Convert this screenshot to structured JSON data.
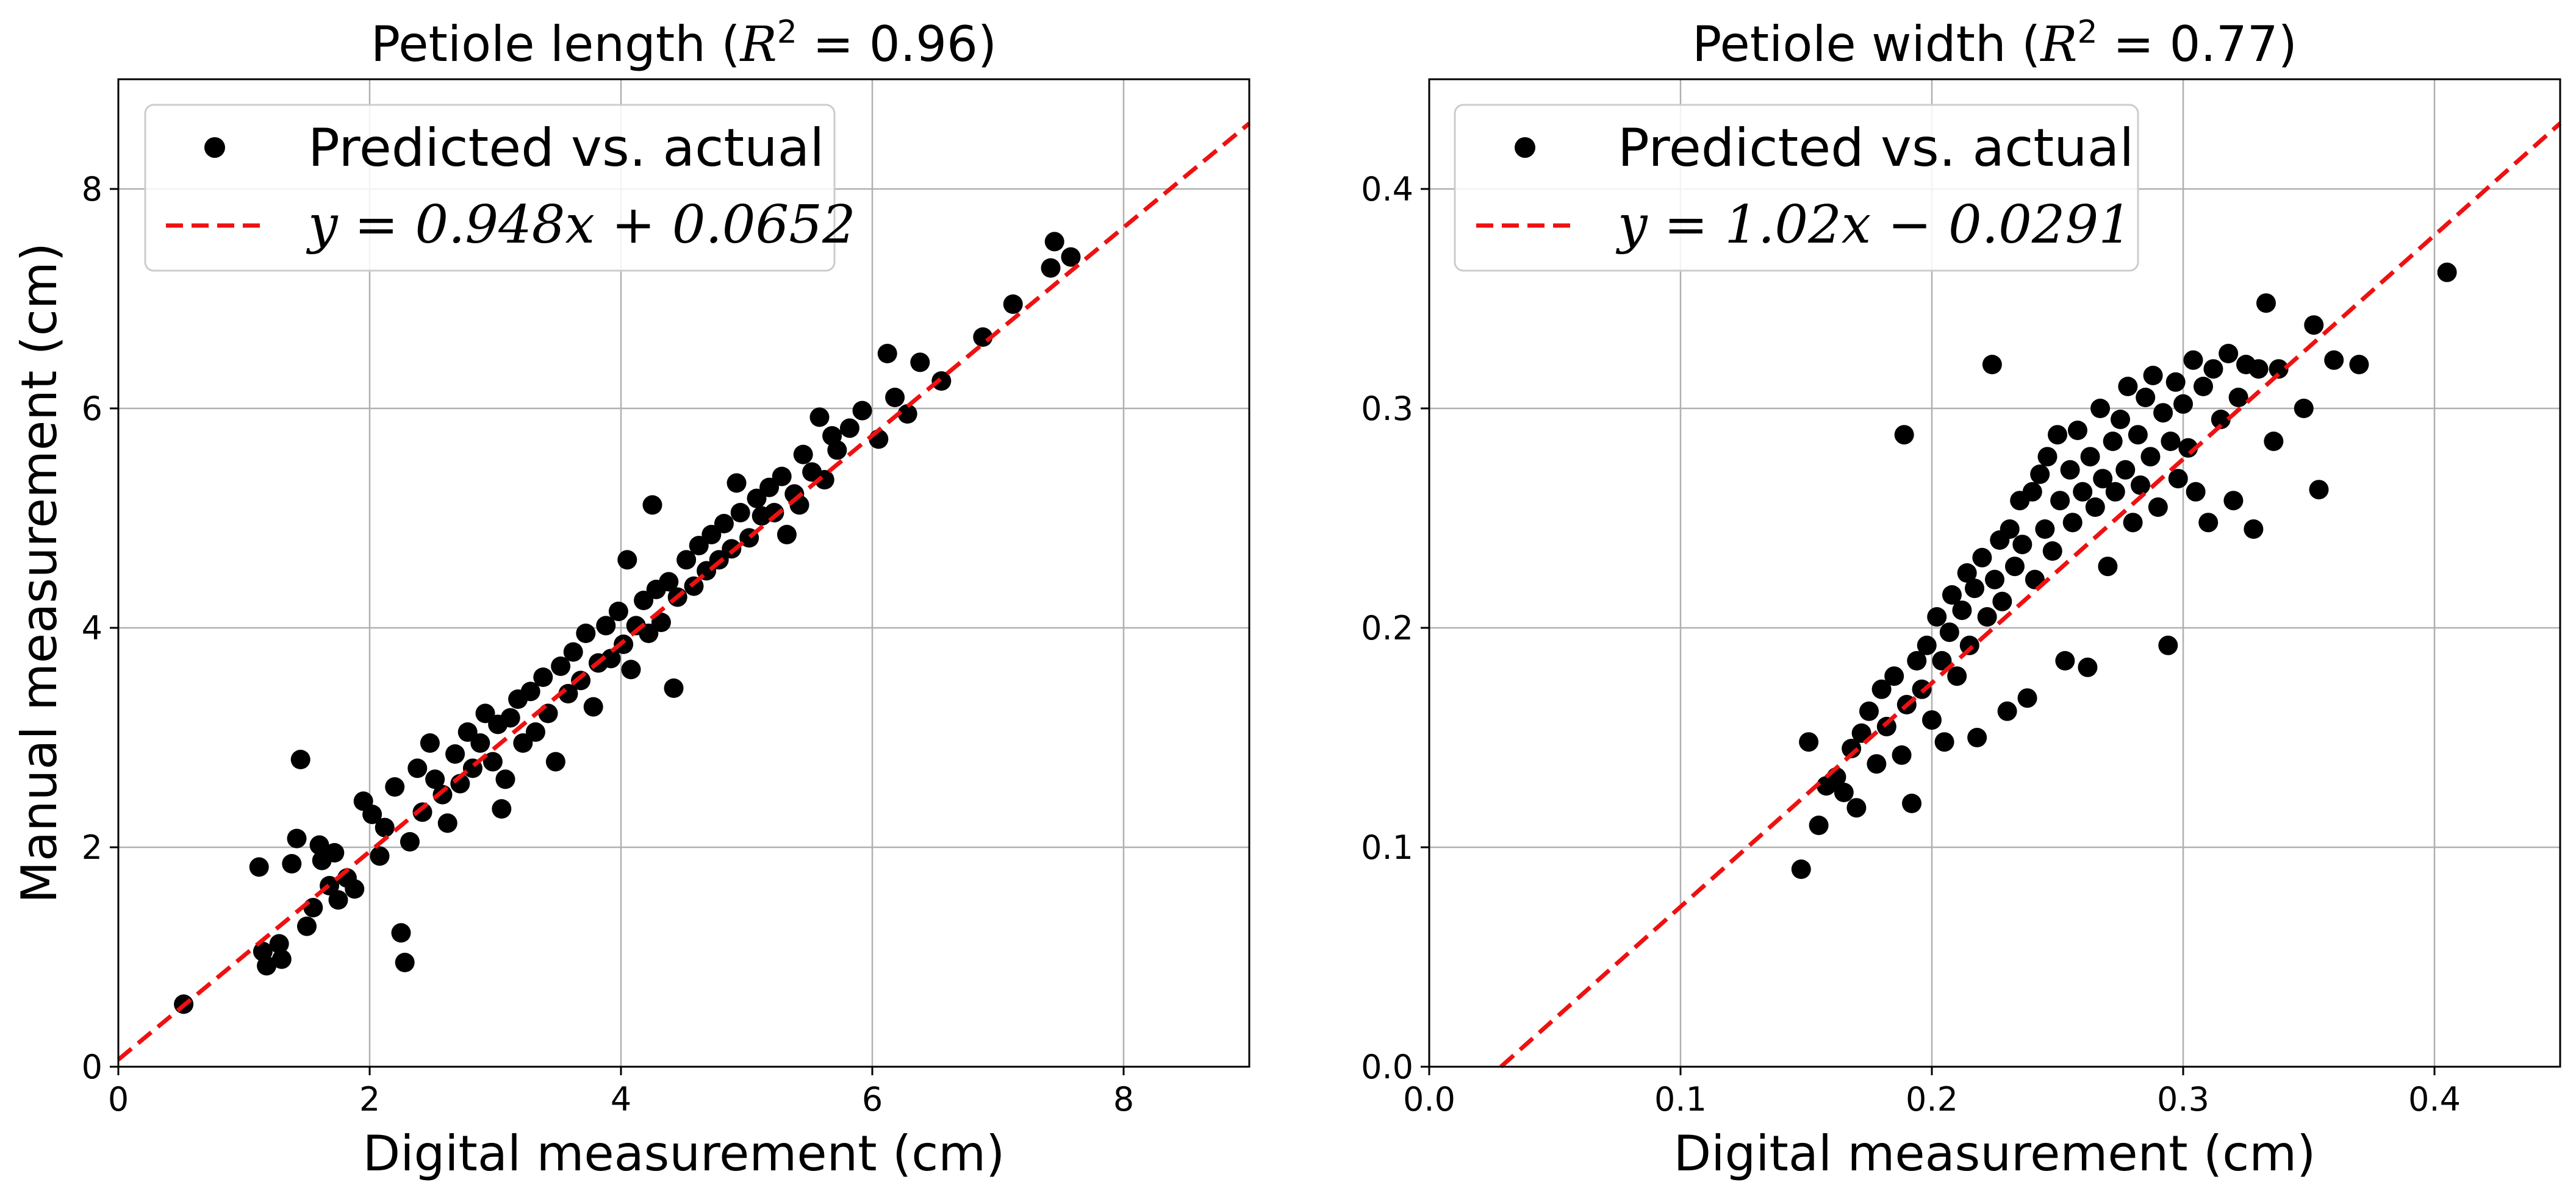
{
  "figure": {
    "shared_ylabel": "Manual measurement (cm)"
  },
  "chart_data": [
    {
      "type": "scatter",
      "title": "Petiole length (R² = 0.96)",
      "title_parts": {
        "prefix": "Petiole length (",
        "r2_symbol": "R",
        "r2_exp": "2",
        "r2_value": " = 0.96)"
      },
      "xlabel": "Digital measurement (cm)",
      "ylabel": "Manual measurement (cm)",
      "xlim": [
        0,
        9
      ],
      "ylim": [
        0,
        9
      ],
      "xticks": [
        0,
        2,
        4,
        6,
        8
      ],
      "yticks": [
        0,
        2,
        4,
        6,
        8
      ],
      "xtick_labels": [
        "0",
        "2",
        "4",
        "6",
        "8"
      ],
      "ytick_labels": [
        "0",
        "2",
        "4",
        "6",
        "8"
      ],
      "grid": true,
      "legend_position": "top-left",
      "legend": [
        "Predicted vs. actual",
        "y = 0.948x + 0.0652"
      ],
      "series": [
        {
          "name": "Predicted vs. actual",
          "color": "#000000",
          "marker": "circle",
          "points": [
            [
              0.52,
              0.57
            ],
            [
              1.12,
              1.82
            ],
            [
              1.15,
              1.05
            ],
            [
              1.18,
              0.92
            ],
            [
              1.28,
              1.12
            ],
            [
              1.3,
              0.98
            ],
            [
              1.38,
              1.85
            ],
            [
              1.42,
              2.08
            ],
            [
              1.45,
              2.8
            ],
            [
              1.5,
              1.28
            ],
            [
              1.55,
              1.45
            ],
            [
              1.6,
              2.02
            ],
            [
              1.62,
              1.88
            ],
            [
              1.68,
              1.65
            ],
            [
              1.72,
              1.95
            ],
            [
              1.75,
              1.52
            ],
            [
              1.82,
              1.72
            ],
            [
              1.88,
              1.62
            ],
            [
              1.95,
              2.42
            ],
            [
              2.02,
              2.3
            ],
            [
              2.08,
              1.92
            ],
            [
              2.12,
              2.18
            ],
            [
              2.2,
              2.55
            ],
            [
              2.25,
              1.22
            ],
            [
              2.28,
              0.95
            ],
            [
              2.32,
              2.05
            ],
            [
              2.38,
              2.72
            ],
            [
              2.42,
              2.32
            ],
            [
              2.48,
              2.95
            ],
            [
              2.52,
              2.62
            ],
            [
              2.58,
              2.48
            ],
            [
              2.62,
              2.22
            ],
            [
              2.68,
              2.85
            ],
            [
              2.72,
              2.58
            ],
            [
              2.78,
              3.05
            ],
            [
              2.82,
              2.72
            ],
            [
              2.88,
              2.95
            ],
            [
              2.92,
              3.22
            ],
            [
              2.98,
              2.78
            ],
            [
              3.02,
              3.12
            ],
            [
              3.05,
              2.35
            ],
            [
              3.08,
              2.62
            ],
            [
              3.12,
              3.18
            ],
            [
              3.18,
              3.35
            ],
            [
              3.22,
              2.95
            ],
            [
              3.28,
              3.42
            ],
            [
              3.32,
              3.05
            ],
            [
              3.38,
              3.55
            ],
            [
              3.42,
              3.22
            ],
            [
              3.48,
              2.78
            ],
            [
              3.52,
              3.65
            ],
            [
              3.58,
              3.4
            ],
            [
              3.62,
              3.78
            ],
            [
              3.68,
              3.52
            ],
            [
              3.72,
              3.95
            ],
            [
              3.78,
              3.28
            ],
            [
              3.82,
              3.68
            ],
            [
              3.88,
              4.02
            ],
            [
              3.92,
              3.72
            ],
            [
              3.98,
              4.15
            ],
            [
              4.02,
              3.85
            ],
            [
              4.05,
              4.62
            ],
            [
              4.08,
              3.62
            ],
            [
              4.12,
              4.02
            ],
            [
              4.18,
              4.25
            ],
            [
              4.22,
              3.95
            ],
            [
              4.25,
              5.12
            ],
            [
              4.28,
              4.35
            ],
            [
              4.32,
              4.05
            ],
            [
              4.38,
              4.42
            ],
            [
              4.42,
              3.45
            ],
            [
              4.45,
              4.28
            ],
            [
              4.52,
              4.62
            ],
            [
              4.58,
              4.38
            ],
            [
              4.62,
              4.75
            ],
            [
              4.68,
              4.52
            ],
            [
              4.72,
              4.85
            ],
            [
              4.78,
              4.62
            ],
            [
              4.82,
              4.95
            ],
            [
              4.88,
              4.72
            ],
            [
              4.92,
              5.32
            ],
            [
              4.95,
              5.05
            ],
            [
              5.02,
              4.82
            ],
            [
              5.08,
              5.18
            ],
            [
              5.12,
              5.02
            ],
            [
              5.18,
              5.28
            ],
            [
              5.22,
              5.05
            ],
            [
              5.28,
              5.38
            ],
            [
              5.32,
              4.85
            ],
            [
              5.38,
              5.22
            ],
            [
              5.42,
              5.12
            ],
            [
              5.45,
              5.58
            ],
            [
              5.52,
              5.42
            ],
            [
              5.58,
              5.92
            ],
            [
              5.62,
              5.35
            ],
            [
              5.68,
              5.75
            ],
            [
              5.72,
              5.62
            ],
            [
              5.82,
              5.82
            ],
            [
              5.92,
              5.98
            ],
            [
              6.05,
              5.72
            ],
            [
              6.12,
              6.5
            ],
            [
              6.18,
              6.1
            ],
            [
              6.28,
              5.95
            ],
            [
              6.38,
              6.42
            ],
            [
              6.55,
              6.25
            ],
            [
              6.88,
              6.65
            ],
            [
              7.12,
              6.95
            ],
            [
              7.42,
              7.28
            ],
            [
              7.45,
              7.52
            ],
            [
              7.58,
              7.38
            ]
          ]
        },
        {
          "name": "y = 0.948x + 0.0652",
          "color": "#ee1111",
          "style": "dashed",
          "slope": 0.948,
          "intercept": 0.0652
        }
      ]
    },
    {
      "type": "scatter",
      "title": "Petiole width (R² = 0.77)",
      "title_parts": {
        "prefix": "Petiole width (",
        "r2_symbol": "R",
        "r2_exp": "2",
        "r2_value": " = 0.77)"
      },
      "xlabel": "Digital measurement (cm)",
      "ylabel": "",
      "xlim": [
        0,
        0.45
      ],
      "ylim": [
        0,
        0.45
      ],
      "xticks": [
        0,
        0.1,
        0.2,
        0.3,
        0.4
      ],
      "yticks": [
        0,
        0.1,
        0.2,
        0.3,
        0.4
      ],
      "xtick_labels": [
        "0.0",
        "0.1",
        "0.2",
        "0.3",
        "0.4"
      ],
      "ytick_labels": [
        "0.0",
        "0.1",
        "0.2",
        "0.3",
        "0.4"
      ],
      "grid": true,
      "legend_position": "top-left",
      "legend": [
        "Predicted vs. actual",
        "y = 1.02x − 0.0291"
      ],
      "series": [
        {
          "name": "Predicted vs. actual",
          "color": "#000000",
          "marker": "circle",
          "points": [
            [
              0.148,
              0.09
            ],
            [
              0.151,
              0.148
            ],
            [
              0.155,
              0.11
            ],
            [
              0.158,
              0.128
            ],
            [
              0.162,
              0.132
            ],
            [
              0.165,
              0.125
            ],
            [
              0.168,
              0.145
            ],
            [
              0.17,
              0.118
            ],
            [
              0.172,
              0.152
            ],
            [
              0.175,
              0.162
            ],
            [
              0.178,
              0.138
            ],
            [
              0.18,
              0.172
            ],
            [
              0.182,
              0.155
            ],
            [
              0.185,
              0.178
            ],
            [
              0.188,
              0.142
            ],
            [
              0.189,
              0.288
            ],
            [
              0.19,
              0.165
            ],
            [
              0.192,
              0.12
            ],
            [
              0.194,
              0.185
            ],
            [
              0.196,
              0.172
            ],
            [
              0.198,
              0.192
            ],
            [
              0.2,
              0.158
            ],
            [
              0.202,
              0.205
            ],
            [
              0.204,
              0.185
            ],
            [
              0.205,
              0.148
            ],
            [
              0.207,
              0.198
            ],
            [
              0.208,
              0.215
            ],
            [
              0.21,
              0.178
            ],
            [
              0.212,
              0.208
            ],
            [
              0.214,
              0.225
            ],
            [
              0.215,
              0.192
            ],
            [
              0.217,
              0.218
            ],
            [
              0.218,
              0.15
            ],
            [
              0.22,
              0.232
            ],
            [
              0.222,
              0.205
            ],
            [
              0.224,
              0.32
            ],
            [
              0.225,
              0.222
            ],
            [
              0.227,
              0.24
            ],
            [
              0.228,
              0.212
            ],
            [
              0.23,
              0.162
            ],
            [
              0.231,
              0.245
            ],
            [
              0.233,
              0.228
            ],
            [
              0.235,
              0.258
            ],
            [
              0.236,
              0.238
            ],
            [
              0.238,
              0.168
            ],
            [
              0.24,
              0.262
            ],
            [
              0.241,
              0.222
            ],
            [
              0.243,
              0.27
            ],
            [
              0.245,
              0.245
            ],
            [
              0.246,
              0.278
            ],
            [
              0.248,
              0.235
            ],
            [
              0.25,
              0.288
            ],
            [
              0.251,
              0.258
            ],
            [
              0.253,
              0.185
            ],
            [
              0.255,
              0.272
            ],
            [
              0.256,
              0.248
            ],
            [
              0.258,
              0.29
            ],
            [
              0.26,
              0.262
            ],
            [
              0.262,
              0.182
            ],
            [
              0.263,
              0.278
            ],
            [
              0.265,
              0.255
            ],
            [
              0.267,
              0.3
            ],
            [
              0.268,
              0.268
            ],
            [
              0.27,
              0.228
            ],
            [
              0.272,
              0.285
            ],
            [
              0.273,
              0.262
            ],
            [
              0.275,
              0.295
            ],
            [
              0.277,
              0.272
            ],
            [
              0.278,
              0.31
            ],
            [
              0.28,
              0.248
            ],
            [
              0.282,
              0.288
            ],
            [
              0.283,
              0.265
            ],
            [
              0.285,
              0.305
            ],
            [
              0.287,
              0.278
            ],
            [
              0.288,
              0.315
            ],
            [
              0.29,
              0.255
            ],
            [
              0.292,
              0.298
            ],
            [
              0.294,
              0.192
            ],
            [
              0.295,
              0.285
            ],
            [
              0.297,
              0.312
            ],
            [
              0.298,
              0.268
            ],
            [
              0.3,
              0.302
            ],
            [
              0.302,
              0.282
            ],
            [
              0.304,
              0.322
            ],
            [
              0.305,
              0.262
            ],
            [
              0.308,
              0.31
            ],
            [
              0.31,
              0.248
            ],
            [
              0.312,
              0.318
            ],
            [
              0.315,
              0.295
            ],
            [
              0.318,
              0.325
            ],
            [
              0.32,
              0.258
            ],
            [
              0.322,
              0.305
            ],
            [
              0.325,
              0.32
            ],
            [
              0.328,
              0.245
            ],
            [
              0.33,
              0.318
            ],
            [
              0.333,
              0.348
            ],
            [
              0.336,
              0.285
            ],
            [
              0.338,
              0.318
            ],
            [
              0.348,
              0.3
            ],
            [
              0.352,
              0.338
            ],
            [
              0.354,
              0.263
            ],
            [
              0.36,
              0.322
            ],
            [
              0.37,
              0.32
            ],
            [
              0.405,
              0.362
            ]
          ]
        },
        {
          "name": "y = 1.02x − 0.0291",
          "color": "#ee1111",
          "style": "dashed",
          "slope": 1.02,
          "intercept": -0.0291
        }
      ]
    }
  ]
}
